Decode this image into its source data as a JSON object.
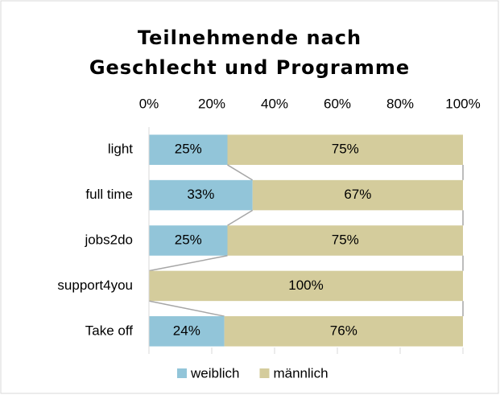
{
  "chart_data": {
    "type": "stacked_bar_horizontal",
    "title": [
      "Teilnehmende nach",
      "Geschlecht und Programme"
    ],
    "categories": [
      "light",
      "full time",
      "jobs2do",
      "support4you",
      "Take off"
    ],
    "series": [
      {
        "name": "weiblich",
        "color": "#92c5d9",
        "values": [
          25,
          33,
          25,
          0,
          24
        ],
        "value_labels": [
          "25%",
          "33%",
          "25%",
          null,
          "24%"
        ]
      },
      {
        "name": "männlich",
        "color": "#d4cc9c",
        "values": [
          75,
          67,
          75,
          100,
          76
        ],
        "value_labels": [
          "75%",
          "67%",
          "75%",
          "100%",
          "76%"
        ]
      }
    ],
    "xlim": [
      0,
      100
    ],
    "xticks": [
      {
        "value": 0,
        "label": "0%"
      },
      {
        "value": 20,
        "label": "20%"
      },
      {
        "value": 40,
        "label": "40%"
      },
      {
        "value": 60,
        "label": "60%"
      },
      {
        "value": 80,
        "label": "80%"
      },
      {
        "value": 100,
        "label": "100%"
      }
    ],
    "series_lines": true,
    "legend": "bottom"
  }
}
